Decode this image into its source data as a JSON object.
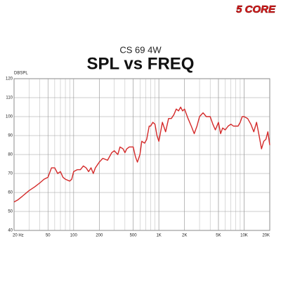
{
  "chart_data": {
    "type": "line",
    "brand": "5 CORE",
    "subtitle": "CS 69 4W",
    "title": "SPL vs FREQ",
    "y_label": "DBSPL",
    "xscale": "log",
    "minor_grid": true,
    "color": "#d42a2a",
    "x": [
      20,
      22,
      25,
      30,
      35,
      40,
      45,
      50,
      55,
      60,
      65,
      70,
      75,
      80,
      90,
      95,
      100,
      110,
      120,
      130,
      140,
      150,
      160,
      170,
      180,
      200,
      220,
      250,
      280,
      300,
      330,
      350,
      380,
      400,
      420,
      450,
      500,
      530,
      560,
      600,
      630,
      680,
      720,
      770,
      800,
      850,
      900,
      950,
      1000,
      1100,
      1200,
      1300,
      1400,
      1500,
      1600,
      1700,
      1800,
      1900,
      2000,
      2200,
      2400,
      2600,
      2800,
      3000,
      3300,
      3600,
      4000,
      4300,
      4600,
      5000,
      5300,
      5600,
      6000,
      6500,
      7000,
      7500,
      8000,
      8500,
      9000,
      9500,
      10000,
      11000,
      12000,
      13000,
      14000,
      15000,
      16000,
      17000,
      18000,
      19000,
      20000
    ],
    "values": [
      55,
      56,
      58,
      61,
      63,
      65,
      67,
      68,
      73,
      73,
      70,
      71,
      68,
      67,
      66,
      67,
      71,
      72,
      72,
      74,
      73,
      71,
      73,
      70,
      73,
      76,
      78,
      77,
      81,
      82,
      80,
      84,
      83,
      81,
      83,
      84,
      84,
      79,
      76,
      80,
      87,
      86,
      88,
      95,
      95,
      97,
      96,
      90,
      87,
      97,
      92,
      99,
      99,
      101,
      104,
      103,
      105,
      103,
      104,
      99,
      95,
      91,
      95,
      100,
      102,
      100,
      100,
      96,
      93,
      97,
      91,
      94,
      93,
      95,
      96,
      95,
      95,
      95,
      97,
      100,
      100,
      99,
      96,
      92,
      97,
      90,
      83,
      87,
      88,
      92,
      85
    ],
    "xlim": [
      20,
      20000
    ],
    "ylim": [
      40,
      120
    ],
    "xticks": [
      {
        "value": 20,
        "label": "20 Hz"
      },
      50,
      100,
      200,
      500,
      {
        "value": 1000,
        "label": "1K"
      },
      {
        "value": 2000,
        "label": "2K"
      },
      {
        "value": 5000,
        "label": "5K"
      },
      {
        "value": 10000,
        "label": "10K"
      },
      {
        "value": 20000,
        "label": "20K"
      }
    ],
    "yticks": [
      40,
      50,
      60,
      70,
      80,
      90,
      100,
      110,
      120
    ],
    "grid": true
  }
}
